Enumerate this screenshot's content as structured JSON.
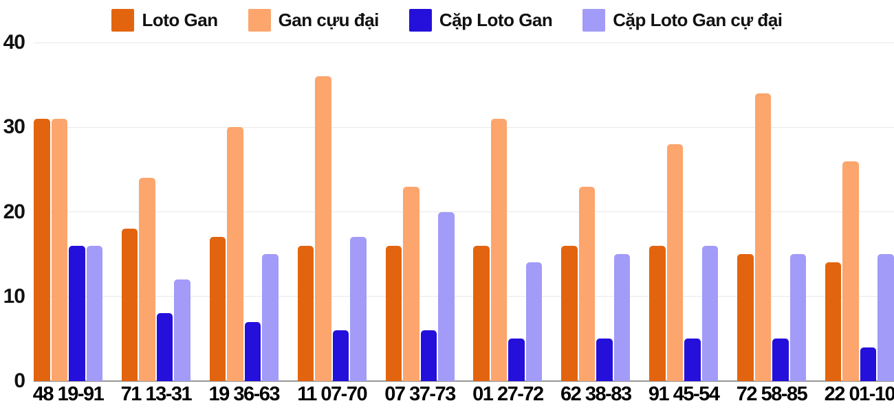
{
  "chart_data": {
    "type": "bar",
    "title": "",
    "categories": [
      "48 19-91",
      "71 13-31",
      "19 36-63",
      "11 07-70",
      "07 37-73",
      "01 27-72",
      "62 38-83",
      "91 45-54",
      "72 58-85",
      "22 01-10"
    ],
    "series": [
      {
        "name": "Loto Gan",
        "color": "#e2640f",
        "values": [
          31,
          18,
          17,
          16,
          16,
          16,
          16,
          16,
          15,
          14
        ]
      },
      {
        "name": "Gan cựu đại",
        "color": "#fca56c",
        "values": [
          31,
          24,
          30,
          36,
          23,
          31,
          23,
          28,
          34,
          26
        ]
      },
      {
        "name": "Cặp Loto Gan",
        "color": "#2410da",
        "values": [
          16,
          8,
          7,
          6,
          6,
          5,
          5,
          5,
          5,
          4
        ]
      },
      {
        "name": "Cặp Loto Gan cự đại",
        "color": "#a29bf8",
        "values": [
          16,
          12,
          15,
          17,
          20,
          14,
          15,
          16,
          15,
          15
        ]
      }
    ],
    "y_ticks": [
      0,
      10,
      20,
      30,
      40
    ],
    "ylim": [
      0,
      40
    ],
    "legend_position": "top",
    "grid": "horizontal",
    "grid_color": "#e8e8e8",
    "baseline_color": "#969696",
    "text_color": "#111111",
    "background_color": "#ffffff"
  }
}
